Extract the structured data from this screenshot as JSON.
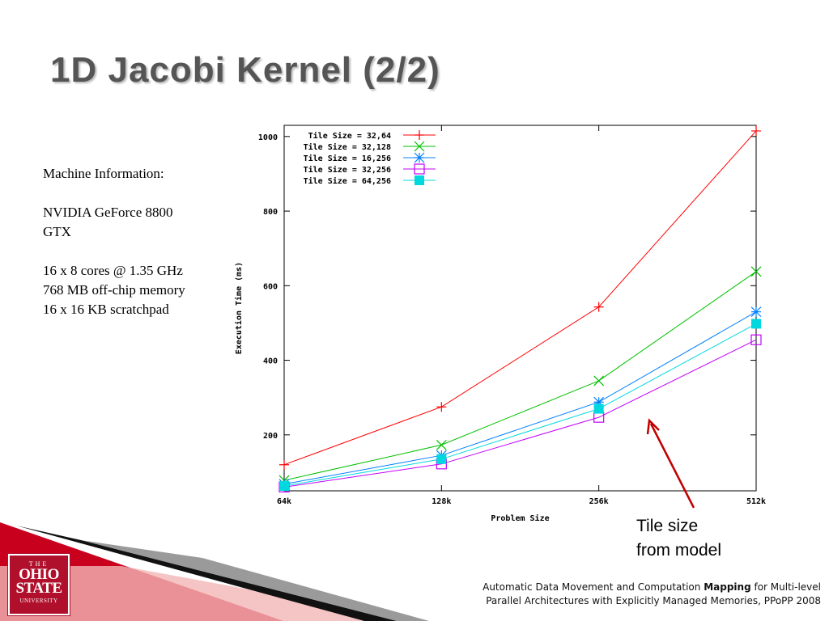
{
  "slide": {
    "title": "1D Jacobi Kernel (2/2)"
  },
  "machine_info": {
    "heading": "Machine Information:",
    "gpu_line1": "NVIDIA GeForce 8800",
    "gpu_line2": "GTX",
    "spec1": "16 x 8 cores @ 1.35 GHz",
    "spec2": "768 MB off-chip memory",
    "spec3": "16 x 16 KB scratchpad"
  },
  "annotation": {
    "line1": "Tile size",
    "line2": "from model",
    "arrow_color": "#c00000"
  },
  "logo": {
    "line1": "THE",
    "line2a": "OHIO",
    "line2b": "STATE",
    "line3": "UNIVERSITY",
    "color": "#b0102c"
  },
  "citation": {
    "part1": "Automatic Data Movement and Computation ",
    "bold": "Mapping",
    "part2": " for Multi-level",
    "line2": "Parallel Architectures with Explicitly Managed Memories, PPoPP 2008"
  },
  "chart_data": {
    "type": "line",
    "xlabel": "Problem Size",
    "ylabel": "Execution Time (ms)",
    "categories": [
      "64k",
      "128k",
      "256k",
      "512k"
    ],
    "ylim": [
      50,
      1030
    ],
    "yticks": [
      200,
      400,
      600,
      800,
      1000
    ],
    "grid": false,
    "legend": "top-left",
    "series": [
      {
        "name": "Tile Size = 32,64",
        "values": [
          120,
          275,
          543,
          1015
        ],
        "color": "#ff0000",
        "marker": "plus"
      },
      {
        "name": "Tile Size = 32,128",
        "values": [
          78,
          173,
          345,
          638
        ],
        "color": "#00c000",
        "marker": "x"
      },
      {
        "name": "Tile Size = 16,256",
        "values": [
          68,
          145,
          288,
          530
        ],
        "color": "#0080ff",
        "marker": "star"
      },
      {
        "name": "Tile Size = 32,256",
        "values": [
          60,
          122,
          247,
          455
        ],
        "color": "#c000ff",
        "marker": "open-square"
      },
      {
        "name": "Tile Size = 64,256",
        "values": [
          63,
          135,
          270,
          498
        ],
        "color": "#00d8e0",
        "marker": "filled-square"
      }
    ]
  }
}
